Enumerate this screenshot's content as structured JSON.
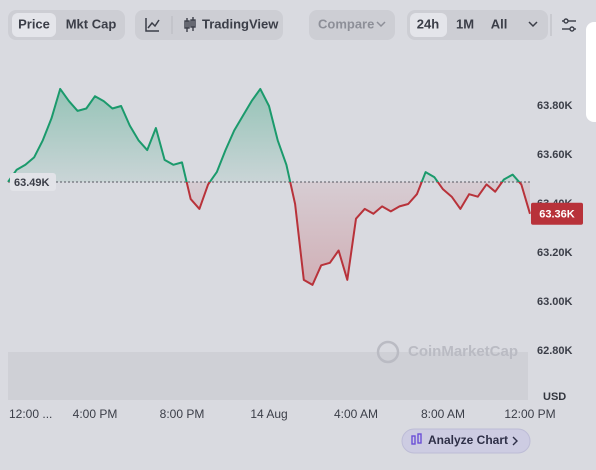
{
  "toolbar": {
    "price": "Price",
    "mkt_cap": "Mkt Cap",
    "tradingview": "TradingView",
    "compare": "Compare",
    "range_24h": "24h",
    "range_1m": "1M",
    "range_all": "All"
  },
  "watermark": "CoinMarketCap",
  "currency": "USD",
  "analyze_button": "Analyze Chart",
  "chart_data": {
    "type": "line",
    "x": [
      0,
      0.4,
      0.8,
      1.2,
      1.6,
      2,
      2.4,
      2.8,
      3.2,
      3.6,
      4,
      4.4,
      4.8,
      5.2,
      5.6,
      6,
      6.4,
      6.8,
      7.2,
      7.6,
      8,
      8.4,
      8.8,
      9.2,
      9.6,
      10,
      10.4,
      10.8,
      11.2,
      11.6,
      12,
      12.4,
      12.8,
      13.2,
      13.6,
      14,
      14.4,
      14.8,
      15.2,
      15.6,
      16,
      16.4,
      16.8,
      17.2,
      17.6,
      18,
      18.4,
      18.8,
      19.2,
      19.6,
      20,
      20.4,
      20.8,
      21.2,
      21.6,
      22,
      22.4,
      22.8,
      23.2,
      23.6,
      24
    ],
    "values": [
      63.49,
      63.54,
      63.56,
      63.59,
      63.66,
      63.75,
      63.87,
      63.82,
      63.78,
      63.79,
      63.84,
      63.82,
      63.79,
      63.8,
      63.72,
      63.66,
      63.62,
      63.71,
      63.58,
      63.56,
      63.57,
      63.42,
      63.38,
      63.48,
      63.53,
      63.62,
      63.7,
      63.76,
      63.82,
      63.87,
      63.8,
      63.66,
      63.56,
      63.4,
      63.09,
      63.07,
      63.15,
      63.16,
      63.21,
      63.09,
      63.34,
      63.38,
      63.36,
      63.39,
      63.37,
      63.39,
      63.4,
      63.44,
      63.53,
      63.51,
      63.46,
      63.43,
      63.38,
      63.44,
      63.43,
      63.48,
      63.45,
      63.5,
      63.52,
      63.48,
      63.36
    ],
    "up_color": "#1b9a6c",
    "down_color": "#b8323a",
    "baseline": {
      "value": 63.49,
      "label": "63.49K"
    },
    "last_price": {
      "value": 63.36,
      "label": "63.36K"
    },
    "xlim": [
      0,
      24
    ],
    "xticks": [
      {
        "value": 0,
        "label": "12:00 ..."
      },
      {
        "value": 4,
        "label": "4:00 PM"
      },
      {
        "value": 8,
        "label": "8:00 PM"
      },
      {
        "value": 12,
        "label": "14 Aug"
      },
      {
        "value": 16,
        "label": "4:00 AM"
      },
      {
        "value": 20,
        "label": "8:00 AM"
      },
      {
        "value": 24,
        "label": "12:00 PM"
      }
    ],
    "ylim": [
      62.6,
      64.0
    ],
    "yticks": [
      {
        "value": 62.8,
        "label": "62.80K"
      },
      {
        "value": 63.0,
        "label": "63.00K"
      },
      {
        "value": 63.2,
        "label": "63.20K"
      },
      {
        "value": 63.4,
        "label": "63.40K"
      },
      {
        "value": 63.6,
        "label": "63.60K"
      },
      {
        "value": 63.8,
        "label": "63.80K"
      }
    ],
    "grid": false
  }
}
